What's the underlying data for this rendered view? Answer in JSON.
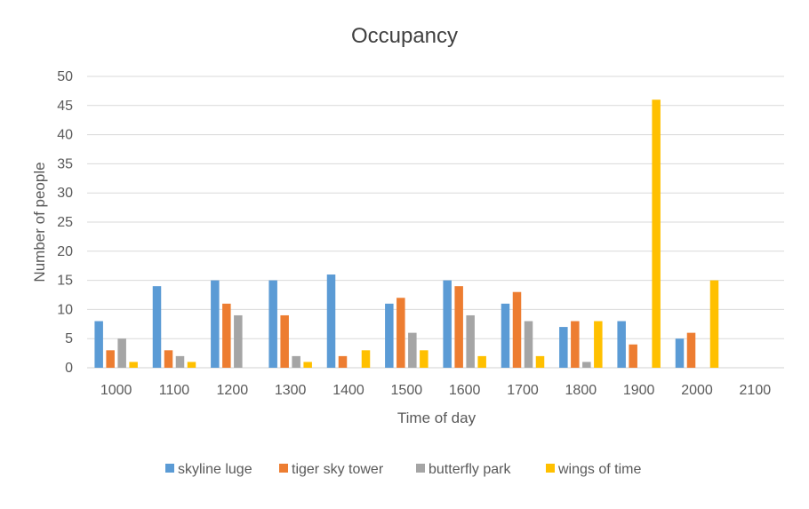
{
  "chart_data": {
    "type": "bar",
    "title": "Occupancy",
    "xlabel": "Time of day",
    "ylabel": "Number of people",
    "ylim": [
      0,
      50
    ],
    "yticks": [
      0,
      5,
      10,
      15,
      20,
      25,
      30,
      35,
      40,
      45,
      50
    ],
    "grid": true,
    "legend_position": "bottom",
    "categories": [
      "1000",
      "1100",
      "1200",
      "1300",
      "1400",
      "1500",
      "1600",
      "1700",
      "1800",
      "1900",
      "2000",
      "2100"
    ],
    "series": [
      {
        "name": "skyline luge",
        "color": "#5B9BD5",
        "values": [
          8,
          14,
          15,
          15,
          16,
          11,
          15,
          11,
          7,
          8,
          5,
          0
        ]
      },
      {
        "name": "tiger sky tower",
        "color": "#ED7D31",
        "values": [
          3,
          3,
          11,
          9,
          2,
          12,
          14,
          13,
          8,
          4,
          6,
          0
        ]
      },
      {
        "name": "butterfly park",
        "color": "#A5A5A5",
        "values": [
          5,
          2,
          9,
          2,
          0,
          6,
          9,
          8,
          1,
          0,
          0,
          0
        ]
      },
      {
        "name": "wings of time",
        "color": "#FFC000",
        "values": [
          1,
          1,
          0,
          1,
          3,
          3,
          2,
          2,
          8,
          46,
          15,
          0
        ]
      }
    ]
  }
}
